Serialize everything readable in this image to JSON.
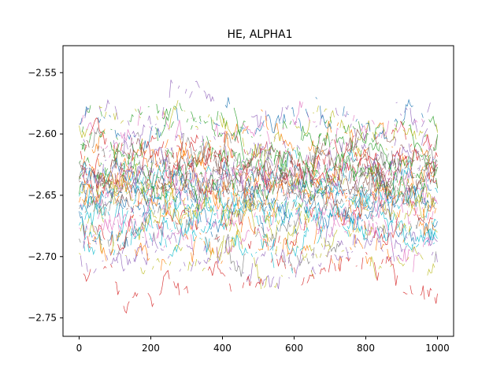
{
  "chart_data": {
    "type": "line",
    "title": "HE, ALPHA1",
    "xlabel": "",
    "ylabel": "",
    "xlim": [
      -45,
      1045
    ],
    "ylim": [
      -2.765,
      -2.528
    ],
    "x_range": [
      0,
      1000
    ],
    "x_ticks": [
      0,
      200,
      400,
      600,
      800,
      1000
    ],
    "x_tick_labels": [
      "0",
      "200",
      "400",
      "600",
      "800",
      "1000"
    ],
    "y_ticks": [
      -2.55,
      -2.6,
      -2.65,
      -2.7,
      -2.75
    ],
    "y_tick_labels": [
      "−2.55",
      "−2.60",
      "−2.65",
      "−2.70",
      "−2.75"
    ],
    "grid": false,
    "legend": "none",
    "band_center": -2.645,
    "band_spread": 0.03,
    "series_count": 60,
    "series_colors": [
      "#1f77b4",
      "#ff7f0e",
      "#2ca02c",
      "#d62728",
      "#9467bd",
      "#8c564b",
      "#e377c2",
      "#7f7f7f",
      "#bcbd22",
      "#17becf"
    ]
  }
}
